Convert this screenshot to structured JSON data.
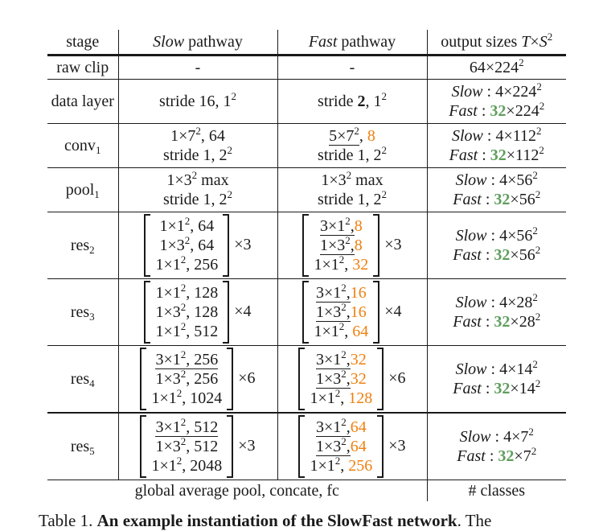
{
  "header": {
    "stage": "stage",
    "slow_italic": "Slow",
    "slow_rest": " pathway",
    "fast_italic": "Fast",
    "fast_rest": " pathway",
    "output_text": "output sizes ",
    "output_math_T": "T",
    "output_math_times": "×",
    "output_math_S": "S",
    "output_math_sup": "2"
  },
  "raw_clip": {
    "stage": "raw clip",
    "slow": "-",
    "fast": "-",
    "out_main": "64×224",
    "out_sup": "2"
  },
  "data_layer": {
    "stage": "data layer",
    "slow_text": "stride 16, 1",
    "slow_sup": "2",
    "fast_pre": "stride ",
    "fast_bold": "2",
    "fast_post": ", 1",
    "fast_sup": "2",
    "out_slow_label": "Slow",
    "out_slow_rest": " : 4×224",
    "out_slow_sup": "2",
    "out_fast_label": "Fast",
    "out_fast_sep": " : ",
    "out_fast_num": "32",
    "out_fast_rest": "×224",
    "out_fast_sup": "2"
  },
  "conv1": {
    "stage_base": "conv",
    "stage_sub": "1",
    "slow_l1_a": "1×7",
    "slow_l1_sup": "2",
    "slow_l1_b": ", 64",
    "slow_l2_a": "stride 1, 2",
    "slow_l2_sup": "2",
    "fast_l1_a": "5×7",
    "fast_l1_sup": "2",
    "fast_l1_sep": ", ",
    "fast_l1_num": "8",
    "fast_l2_a": "stride 1, 2",
    "fast_l2_sup": "2",
    "out_slow_label": "Slow",
    "out_slow_rest": " : 4×112",
    "out_slow_sup": "2",
    "out_fast_label": "Fast",
    "out_fast_sep": " : ",
    "out_fast_num": "32",
    "out_fast_rest": "×112",
    "out_fast_sup": "2"
  },
  "pool1": {
    "stage_base": "pool",
    "stage_sub": "1",
    "slow_l1_a": "1×3",
    "slow_l1_sup": "2",
    "slow_l1_b": " max",
    "slow_l2_a": "stride 1, 2",
    "slow_l2_sup": "2",
    "fast_l1_a": "1×3",
    "fast_l1_sup": "2",
    "fast_l1_b": " max",
    "fast_l2_a": "stride 1, 2",
    "fast_l2_sup": "2",
    "out_slow_label": "Slow",
    "out_slow_rest": " : 4×56",
    "out_slow_sup": "2",
    "out_fast_label": "Fast",
    "out_fast_sep": " : ",
    "out_fast_num": "32",
    "out_fast_rest": "×56",
    "out_fast_sup": "2"
  },
  "res2": {
    "stage_base": "res",
    "stage_sub": "2",
    "slow_lines": [
      "1×1",
      ", 64",
      "1×3",
      ", 64",
      "1×1",
      ", 256"
    ],
    "slow_mult": "×3",
    "fast_k": [
      "3×1",
      "1×3",
      "1×1"
    ],
    "fast_c": [
      "8",
      "8",
      "32"
    ],
    "fast_mult": "×3",
    "out_slow_label": "Slow",
    "out_slow_rest": " : 4×56",
    "out_slow_sup": "2",
    "out_fast_label": "Fast",
    "out_fast_sep": " : ",
    "out_fast_num": "32",
    "out_fast_rest": "×56",
    "out_fast_sup": "2"
  },
  "res3": {
    "stage_base": "res",
    "stage_sub": "3",
    "slow_lines": [
      "1×1",
      ", 128",
      "1×3",
      ", 128",
      "1×1",
      ", 512"
    ],
    "slow_mult": "×4",
    "fast_k": [
      "3×1",
      "1×3",
      "1×1"
    ],
    "fast_c": [
      "16",
      "16",
      "64"
    ],
    "fast_mult": "×4",
    "out_slow_label": "Slow",
    "out_slow_rest": " : 4×28",
    "out_slow_sup": "2",
    "out_fast_label": "Fast",
    "out_fast_sep": " : ",
    "out_fast_num": "32",
    "out_fast_rest": "×28",
    "out_fast_sup": "2"
  },
  "res4": {
    "stage_base": "res",
    "stage_sub": "4",
    "slow_lines": [
      "3×1",
      ", 256",
      "1×3",
      ", 256",
      "1×1",
      ", 1024"
    ],
    "slow_mult": "×6",
    "fast_k": [
      "3×1",
      "1×3",
      "1×1"
    ],
    "fast_c": [
      "32",
      "32",
      "128"
    ],
    "fast_mult": "×6",
    "out_slow_label": "Slow",
    "out_slow_rest": " : 4×14",
    "out_slow_sup": "2",
    "out_fast_label": "Fast",
    "out_fast_sep": " : ",
    "out_fast_num": "32",
    "out_fast_rest": "×14",
    "out_fast_sup": "2"
  },
  "res5": {
    "stage_base": "res",
    "stage_sub": "5",
    "slow_lines": [
      "3×1",
      ", 512",
      "1×3",
      ", 512",
      "1×1",
      ", 2048"
    ],
    "slow_mult": "×3",
    "fast_k": [
      "3×1",
      "1×3",
      "1×1"
    ],
    "fast_c": [
      "64",
      "64",
      "256"
    ],
    "fast_mult": "×3",
    "out_slow_label": "Slow",
    "out_slow_rest": " : 4×7",
    "out_slow_sup": "2",
    "out_fast_label": "Fast",
    "out_fast_sep": " : ",
    "out_fast_num": "32",
    "out_fast_rest": "×7",
    "out_fast_sup": "2"
  },
  "footer_row": {
    "left": "global average pool, concate, fc",
    "right": "# classes"
  },
  "caption": {
    "prefix": "Table 1. ",
    "bold": "An example instantiation of the SlowFast network",
    "suffix": ". The"
  },
  "superscript": "2",
  "colors": {
    "orange": "#f0800f",
    "green": "#5e9e5c",
    "rule": "#1a1a1a"
  }
}
